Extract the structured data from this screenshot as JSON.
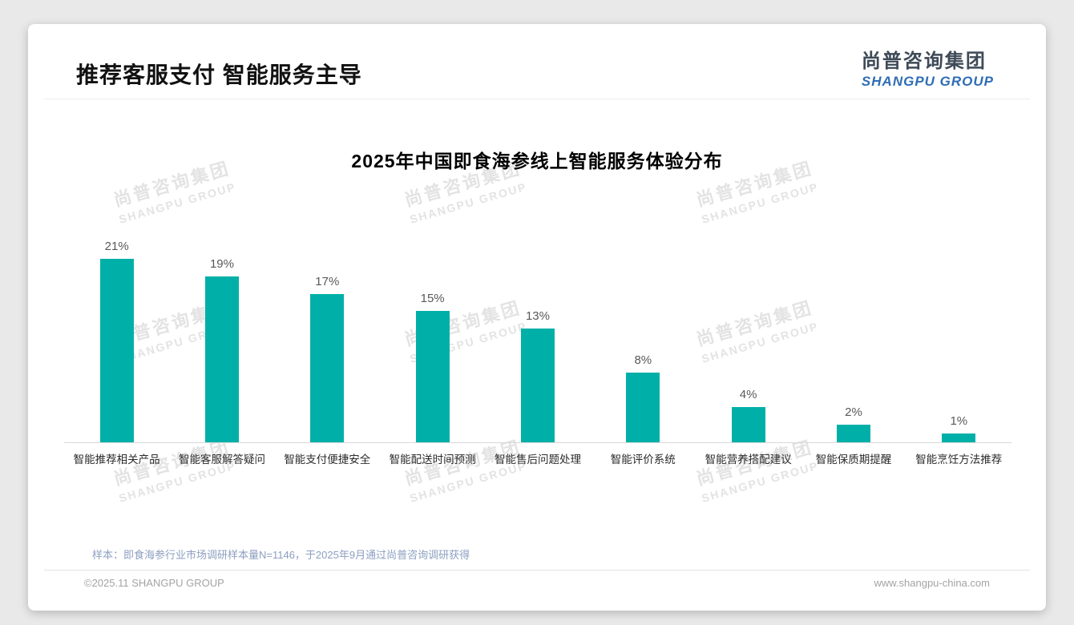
{
  "page": {
    "header_title": "推荐客服支付 智能服务主导",
    "logo": {
      "cn": "尚普咨询集团",
      "en": "SHANGPU GROUP"
    },
    "watermark": {
      "cn": "尚普咨询集团",
      "en": "SHANGPU GROUP"
    },
    "note": "样本：即食海参行业市场调研样本量N=1146，于2025年9月通过尚普咨询调研获得",
    "footer_left": "©2025.11 SHANGPU GROUP",
    "footer_right": "www.shangpu-china.com"
  },
  "colors": {
    "accent_teal": "#00b0a8",
    "brand_blue": "#2f6db4"
  },
  "chart_data": {
    "type": "bar",
    "title": "2025年中国即食海参线上智能服务体验分布",
    "categories": [
      "智能推荐相关产品",
      "智能客服解答疑问",
      "智能支付便捷安全",
      "智能配送时间预测",
      "智能售后问题处理",
      "智能评价系统",
      "智能营养搭配建议",
      "智能保质期提醒",
      "智能烹饪方法推荐"
    ],
    "values": [
      21,
      19,
      17,
      15,
      13,
      8,
      4,
      2,
      1
    ],
    "value_suffix": "%",
    "xlabel": "",
    "ylabel": "",
    "ylim": [
      0,
      22
    ],
    "grid": false,
    "legend": false,
    "bar_color": "#00b0a8"
  }
}
